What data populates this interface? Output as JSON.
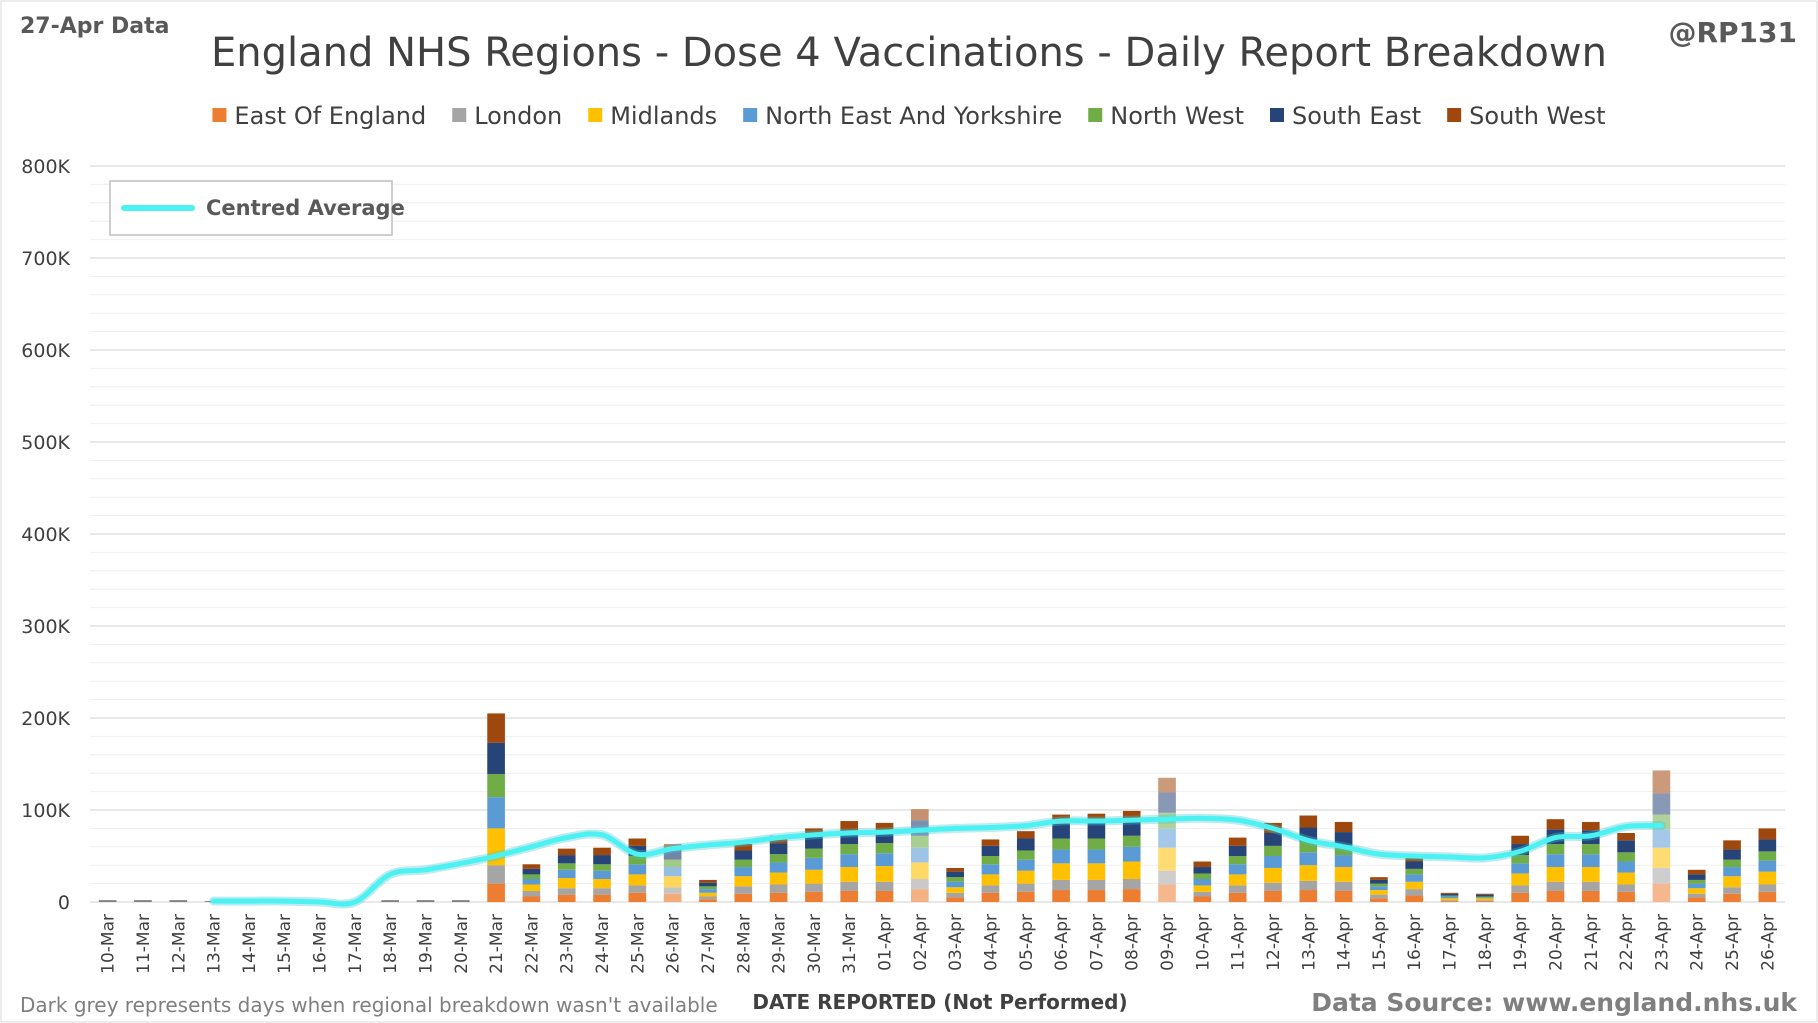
{
  "header": {
    "data_date": "27-Apr Data",
    "handle": "@RP131"
  },
  "footer": {
    "note": "Dark grey represents days when regional breakdown wasn't available",
    "source": "Data Source: www.england.nhs.uk"
  },
  "chart_data": {
    "type": "bar",
    "stacked": true,
    "title": "England NHS Regions - Dose 4 Vaccinations - Daily Report Breakdown",
    "xlabel": "DATE REPORTED (Not Performed)",
    "ylabel": "",
    "ylim": [
      0,
      800000
    ],
    "yticks": [
      0,
      100000,
      200000,
      300000,
      400000,
      500000,
      600000,
      700000,
      800000
    ],
    "ytick_labels": [
      "0",
      "100K",
      "200K",
      "300K",
      "400K",
      "500K",
      "600K",
      "700K",
      "800K"
    ],
    "grid": true,
    "legend_position": "top",
    "categories": [
      "10-Mar",
      "11-Mar",
      "12-Mar",
      "13-Mar",
      "14-Mar",
      "15-Mar",
      "16-Mar",
      "17-Mar",
      "18-Mar",
      "19-Mar",
      "20-Mar",
      "21-Mar",
      "22-Mar",
      "23-Mar",
      "24-Mar",
      "25-Mar",
      "26-Mar",
      "27-Mar",
      "28-Mar",
      "29-Mar",
      "30-Mar",
      "31-Mar",
      "01-Apr",
      "02-Apr",
      "03-Apr",
      "04-Apr",
      "05-Apr",
      "06-Apr",
      "07-Apr",
      "08-Apr",
      "09-Apr",
      "10-Apr",
      "11-Apr",
      "12-Apr",
      "13-Apr",
      "14-Apr",
      "15-Apr",
      "16-Apr",
      "17-Apr",
      "18-Apr",
      "19-Apr",
      "20-Apr",
      "21-Apr",
      "22-Apr",
      "23-Apr",
      "24-Apr",
      "25-Apr",
      "26-Apr"
    ],
    "series": [
      {
        "name": "East Of England",
        "color": "#ED7D31",
        "values": [
          0,
          0,
          0,
          0,
          0,
          0,
          0,
          0,
          0,
          0,
          0,
          20000,
          6000,
          8000,
          8000,
          10000,
          9000,
          3000,
          9000,
          10000,
          11000,
          12000,
          12000,
          14000,
          5000,
          10000,
          11000,
          13000,
          13000,
          14000,
          19000,
          6000,
          10000,
          12000,
          13000,
          12000,
          4000,
          7000,
          1000,
          1000,
          10000,
          12000,
          12000,
          11000,
          20000,
          5000,
          9000,
          11000
        ]
      },
      {
        "name": "London",
        "color": "#A5A5A5",
        "values": [
          0,
          0,
          0,
          0,
          0,
          0,
          0,
          0,
          0,
          0,
          0,
          20000,
          6000,
          7000,
          7000,
          8000,
          7000,
          3000,
          8000,
          9000,
          9000,
          10000,
          10000,
          11000,
          5000,
          8000,
          9000,
          11000,
          11000,
          11000,
          15000,
          5000,
          8000,
          9000,
          10000,
          10000,
          4000,
          7000,
          1000,
          1000,
          8000,
          10000,
          10000,
          8000,
          17000,
          4000,
          7000,
          8000
        ]
      },
      {
        "name": "Midlands",
        "color": "#FFC000",
        "values": [
          0,
          0,
          0,
          0,
          0,
          0,
          0,
          0,
          0,
          0,
          0,
          40000,
          7000,
          11000,
          10000,
          12000,
          12000,
          4000,
          11000,
          13000,
          15000,
          16000,
          17000,
          18000,
          6000,
          12000,
          14000,
          18000,
          18000,
          19000,
          25000,
          7000,
          12000,
          16000,
          17000,
          16000,
          5000,
          8000,
          2000,
          2000,
          13000,
          16000,
          16000,
          13000,
          22000,
          6000,
          12000,
          14000
        ]
      },
      {
        "name": "North East And Yorkshire",
        "color": "#5B9BD5",
        "values": [
          0,
          0,
          0,
          0,
          0,
          0,
          0,
          0,
          0,
          0,
          0,
          34000,
          6000,
          9000,
          9000,
          11000,
          10000,
          4000,
          10000,
          11000,
          13000,
          14000,
          14000,
          16000,
          6000,
          11000,
          12000,
          15000,
          15000,
          16000,
          21000,
          7000,
          11000,
          13000,
          14000,
          13000,
          4000,
          8000,
          2000,
          1000,
          11000,
          14000,
          14000,
          12000,
          20000,
          5000,
          10000,
          12000
        ]
      },
      {
        "name": "North West",
        "color": "#70AD47",
        "values": [
          0,
          0,
          0,
          0,
          0,
          0,
          0,
          0,
          0,
          0,
          0,
          25000,
          5000,
          7000,
          7000,
          9000,
          8000,
          3000,
          8000,
          9000,
          10000,
          11000,
          11000,
          13000,
          5000,
          9000,
          10000,
          12000,
          12000,
          12000,
          17000,
          6000,
          9000,
          11000,
          12000,
          11000,
          3000,
          6000,
          1000,
          1000,
          9000,
          11000,
          11000,
          10000,
          16000,
          4000,
          8000,
          10000
        ]
      },
      {
        "name": "South East",
        "color": "#264478",
        "values": [
          0,
          0,
          0,
          0,
          0,
          0,
          0,
          0,
          0,
          0,
          0,
          34000,
          6000,
          9000,
          10000,
          11000,
          10000,
          4000,
          10000,
          12000,
          13000,
          15000,
          14000,
          17000,
          6000,
          11000,
          13000,
          16000,
          17000,
          16000,
          22000,
          7000,
          11000,
          14000,
          15000,
          14000,
          4000,
          8000,
          2000,
          2000,
          12000,
          16000,
          15000,
          13000,
          23000,
          6000,
          11000,
          13000
        ]
      },
      {
        "name": "South West",
        "color": "#9E480E",
        "values": [
          0,
          0,
          0,
          0,
          0,
          0,
          0,
          0,
          0,
          0,
          0,
          32000,
          5000,
          7000,
          8000,
          8000,
          7000,
          3000,
          7000,
          8000,
          9000,
          10000,
          8000,
          12000,
          4000,
          7000,
          8000,
          10000,
          10000,
          11000,
          16000,
          6000,
          9000,
          11000,
          13000,
          11000,
          3000,
          7000,
          1000,
          1000,
          9000,
          11000,
          9000,
          8000,
          25000,
          5000,
          10000,
          12000
        ]
      }
    ],
    "unattributed": {
      "color": "#7F7F7F",
      "values": [
        2000,
        2000,
        2000,
        1000,
        0,
        0,
        0,
        0,
        2000,
        2000,
        2000,
        0,
        0,
        0,
        0,
        0,
        0,
        0,
        0,
        0,
        0,
        0,
        0,
        0,
        0,
        0,
        0,
        0,
        0,
        0,
        0,
        0,
        0,
        0,
        0,
        0,
        0,
        0,
        0,
        0,
        0,
        0,
        0,
        0,
        0,
        0,
        0,
        0
      ]
    },
    "centred_average": {
      "name": "Centred Average",
      "color": "#4CF2F2",
      "values": [
        null,
        null,
        null,
        1000,
        1000,
        1000,
        0,
        0,
        30000,
        35000,
        42000,
        50000,
        60000,
        70000,
        73000,
        52000,
        58000,
        62000,
        65000,
        70000,
        73000,
        75000,
        76000,
        78000,
        80000,
        81000,
        83000,
        88000,
        88000,
        89000,
        90000,
        91000,
        89000,
        80000,
        67000,
        60000,
        52000,
        50000,
        49000,
        48000,
        55000,
        70000,
        72000,
        82000,
        83000,
        null,
        null,
        null
      ]
    }
  }
}
